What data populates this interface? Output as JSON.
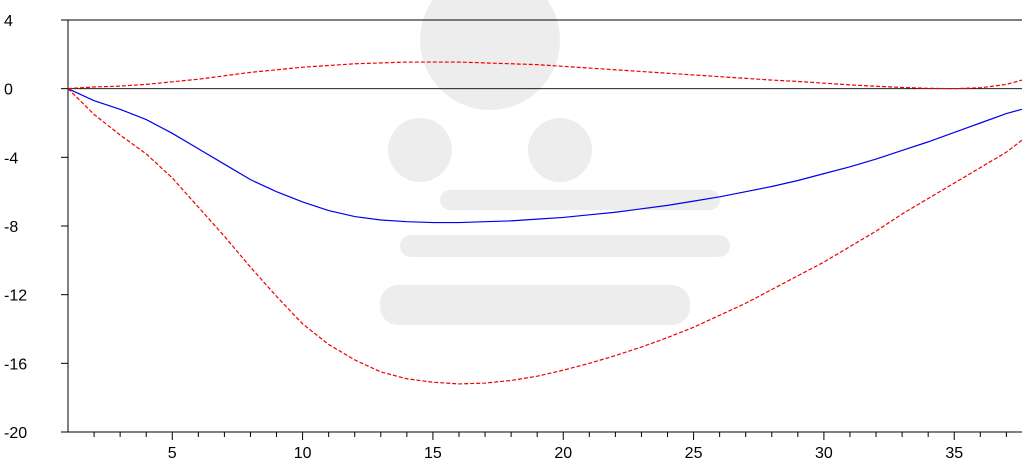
{
  "chart_data": {
    "type": "line",
    "title": "",
    "xlabel": "",
    "ylabel": "",
    "xlim": [
      1,
      37.6
    ],
    "ylim": [
      -20,
      4
    ],
    "x_ticks": [
      5,
      10,
      15,
      20,
      25,
      30,
      35
    ],
    "x_minor_step": 1,
    "y_ticks": [
      4,
      0,
      -4,
      -8,
      -12,
      -16,
      -20
    ],
    "zero_line": true,
    "grid": false,
    "legend": "none",
    "x": [
      1,
      2,
      3,
      4,
      5,
      6,
      7,
      8,
      9,
      10,
      11,
      12,
      13,
      14,
      15,
      16,
      17,
      18,
      19,
      20,
      21,
      22,
      23,
      24,
      25,
      26,
      27,
      28,
      29,
      30,
      31,
      32,
      33,
      34,
      35,
      36,
      37,
      37.6
    ],
    "series": [
      {
        "role": "response",
        "color": "#0000ee",
        "dash": "solid",
        "values": [
          0,
          -0.7,
          -1.2,
          -1.8,
          -2.6,
          -3.5,
          -4.4,
          -5.3,
          -6.0,
          -6.6,
          -7.1,
          -7.45,
          -7.65,
          -7.75,
          -7.8,
          -7.8,
          -7.75,
          -7.7,
          -7.6,
          -7.5,
          -7.35,
          -7.2,
          -7.0,
          -6.8,
          -6.55,
          -6.3,
          -6.0,
          -5.7,
          -5.35,
          -4.95,
          -4.55,
          -4.1,
          -3.6,
          -3.1,
          -2.55,
          -2.0,
          -1.45,
          -1.2
        ]
      },
      {
        "role": "upper-band",
        "color": "#ee0000",
        "dash": "dashed",
        "values": [
          0,
          0.1,
          0.15,
          0.25,
          0.4,
          0.55,
          0.75,
          0.95,
          1.1,
          1.25,
          1.35,
          1.45,
          1.5,
          1.55,
          1.55,
          1.55,
          1.5,
          1.45,
          1.4,
          1.3,
          1.2,
          1.1,
          1.0,
          0.9,
          0.8,
          0.7,
          0.6,
          0.5,
          0.42,
          0.32,
          0.22,
          0.14,
          0.07,
          0.02,
          0.0,
          0.05,
          0.25,
          0.5
        ]
      },
      {
        "role": "lower-band",
        "color": "#ee0000",
        "dash": "dashed",
        "values": [
          0,
          -1.5,
          -2.7,
          -3.8,
          -5.2,
          -6.9,
          -8.6,
          -10.4,
          -12.1,
          -13.7,
          -14.9,
          -15.8,
          -16.5,
          -16.9,
          -17.1,
          -17.2,
          -17.15,
          -17.0,
          -16.75,
          -16.4,
          -16.0,
          -15.55,
          -15.05,
          -14.5,
          -13.9,
          -13.2,
          -12.5,
          -11.7,
          -10.9,
          -10.1,
          -9.2,
          -8.3,
          -7.3,
          -6.4,
          -5.5,
          -4.6,
          -3.7,
          -3.0
        ]
      }
    ]
  }
}
